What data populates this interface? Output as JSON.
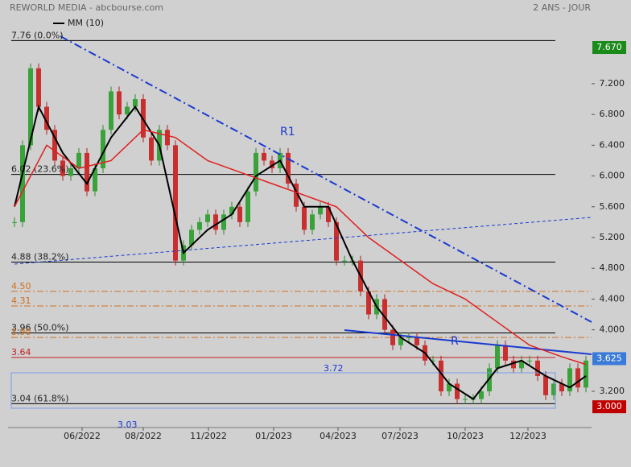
{
  "chart_data": {
    "type": "stock",
    "title": "REWORLD MEDIA - abcbourse.com",
    "subtitle": "2 ANS - JOUR",
    "xlim": [
      0,
      71.5
    ],
    "ylim": [
      2.74,
      7.89
    ],
    "yticks": [
      {
        "value": 3.2,
        "label": "3.200"
      },
      {
        "value": 4,
        "label": "4.000"
      },
      {
        "value": 4.4,
        "label": "4.400"
      },
      {
        "value": 4.8,
        "label": "4.800"
      },
      {
        "value": 5.2,
        "label": "5.200"
      },
      {
        "value": 5.6,
        "label": "5.600"
      },
      {
        "value": 6,
        "label": "6.000"
      },
      {
        "value": 6.4,
        "label": "6.400"
      },
      {
        "value": 6.8,
        "label": "6.800"
      },
      {
        "value": 7.2,
        "label": "7.200"
      }
    ],
    "xticks": [
      {
        "value": 8.4,
        "label": "06/2022"
      },
      {
        "value": 16,
        "label": "08/2022"
      },
      {
        "value": 24.1,
        "label": "11/2022"
      },
      {
        "value": 32.2,
        "label": "01/2023"
      },
      {
        "value": 40.2,
        "label": "04/2023"
      },
      {
        "value": 47.9,
        "label": "07/2023"
      },
      {
        "value": 56,
        "label": "10/2023"
      },
      {
        "value": 63.8,
        "label": "12/2023"
      }
    ],
    "price": [
      5.4,
      6.4,
      7.4,
      6.9,
      6.6,
      6.2,
      6.0,
      6.1,
      6.3,
      5.8,
      6.1,
      6.6,
      7.1,
      6.8,
      6.9,
      7.0,
      6.5,
      6.2,
      6.6,
      6.4,
      4.9,
      5.1,
      5.3,
      5.4,
      5.5,
      5.3,
      5.5,
      5.6,
      5.4,
      5.8,
      6.3,
      6.2,
      6.1,
      6.3,
      5.9,
      5.6,
      5.3,
      5.5,
      5.6,
      5.4,
      4.9,
      4.9,
      4.9,
      4.5,
      4.2,
      4.4,
      4.0,
      3.8,
      3.9,
      3.9,
      3.8,
      3.6,
      3.6,
      3.2,
      3.3,
      3.1,
      3.1,
      3.1,
      3.2,
      3.5,
      3.8,
      3.6,
      3.5,
      3.6,
      3.6,
      3.4,
      3.15,
      3.3,
      3.2,
      3.5,
      3.25,
      3.6
    ],
    "series": [
      {
        "name": "MM (10)",
        "color": "#000000",
        "x": [
          0,
          3,
          6,
          9,
          12,
          15,
          18,
          21,
          24,
          27,
          30,
          33,
          36,
          39,
          42,
          45,
          48,
          51,
          54,
          57,
          60,
          63,
          66,
          69,
          71
        ],
        "values": [
          5.6,
          6.9,
          6.3,
          5.9,
          6.5,
          6.9,
          6.4,
          5.0,
          5.3,
          5.5,
          6.0,
          6.2,
          5.6,
          5.6,
          4.9,
          4.3,
          3.9,
          3.7,
          3.3,
          3.1,
          3.5,
          3.6,
          3.4,
          3.25,
          3.4
        ]
      },
      {
        "color": "#e02020",
        "x": [
          0,
          4,
          8,
          12,
          16,
          20,
          24,
          28,
          32,
          36,
          40,
          44,
          48,
          52,
          56,
          60,
          64,
          68,
          71
        ],
        "values": [
          5.6,
          6.4,
          6.1,
          6.2,
          6.6,
          6.5,
          6.2,
          6.05,
          5.9,
          5.75,
          5.6,
          5.2,
          4.9,
          4.6,
          4.4,
          4.1,
          3.8,
          3.65,
          3.55
        ]
      }
    ],
    "levels": [
      {
        "value": 7.76,
        "label": "7.76  (0.0%)",
        "color": "#000000"
      },
      {
        "value": 6.02,
        "label": "6.02  (23.6%)",
        "color": "#000000"
      },
      {
        "value": 4.88,
        "label": "4.88  (38.2%)",
        "color": "#000000"
      },
      {
        "value": 4.5,
        "label": "4.50",
        "color": "#d07020"
      },
      {
        "value": 4.31,
        "label": "4.31",
        "color": "#d07020"
      },
      {
        "value": 3.96,
        "label": "3.96  (50.0%)",
        "color": "#000000"
      },
      {
        "value": 3.9,
        "label": "3.90",
        "color": "#d07020"
      },
      {
        "value": 3.64,
        "label": "3.64",
        "color": "#c02020"
      },
      {
        "value": 3.04,
        "label": "3.04  (61.8%)",
        "color": "#000000"
      }
    ],
    "badges": [
      {
        "value": 7.67,
        "label": "7.670",
        "color": "#1a8a1a"
      },
      {
        "value": 3.625,
        "label": "3.625",
        "color": "#3a7ad8"
      },
      {
        "value": 3.0,
        "label": "3.000",
        "color": "#c00000"
      }
    ],
    "annotations": [
      "R1",
      "R",
      "3.72",
      "3.03"
    ]
  }
}
